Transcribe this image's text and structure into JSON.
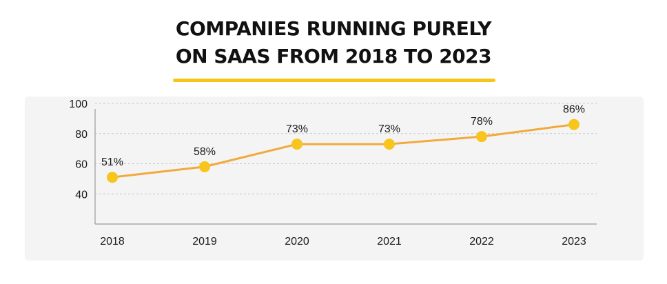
{
  "title_lines": [
    "COMPANIES RUNNING PURELY",
    "ON SAAS FROM 2018 TO 2023"
  ],
  "colors": {
    "accent": "#f5c518",
    "line": "#f2a93b",
    "marker": "#f7c51c",
    "panel": "#f4f4f4",
    "grid": "#c8c8c8",
    "axis": "#9a9a9a"
  },
  "chart_data": {
    "type": "line",
    "title": "COMPANIES RUNNING PURELY ON SAAS FROM 2018 TO 2023",
    "xlabel": "",
    "ylabel": "",
    "categories": [
      "2018",
      "2019",
      "2020",
      "2021",
      "2022",
      "2023"
    ],
    "values": [
      51,
      58,
      73,
      73,
      78,
      86
    ],
    "data_labels": [
      "51%",
      "58%",
      "73%",
      "73%",
      "78%",
      "86%"
    ],
    "yticks": [
      40,
      60,
      80,
      100
    ],
    "ylim": [
      20,
      100
    ],
    "grid": true,
    "legend": "none"
  }
}
